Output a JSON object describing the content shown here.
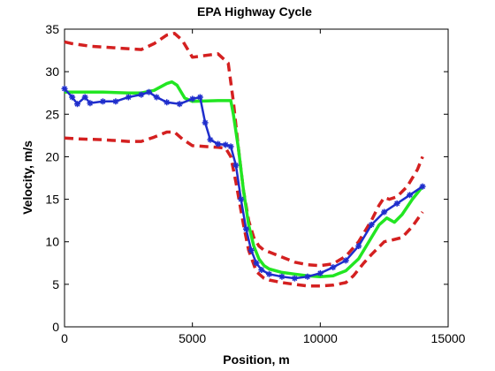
{
  "chart_data": {
    "type": "line",
    "title": "EPA Highway Cycle",
    "xlabel": "Position, m",
    "ylabel": "Velocity, m/s",
    "xlim": [
      0,
      15000
    ],
    "ylim": [
      0,
      35
    ],
    "xticks": [
      0,
      5000,
      10000,
      15000
    ],
    "yticks": [
      0,
      5,
      10,
      15,
      20,
      25,
      30,
      35
    ],
    "grid": false,
    "legend": "none",
    "series": [
      {
        "style": "dashed",
        "color": "#d42020",
        "x": [
          0,
          300,
          1000,
          2000,
          3000,
          3500,
          4000,
          4300,
          4600,
          5000,
          6000,
          6400,
          6600,
          6800,
          7000,
          7200,
          7400,
          7600,
          7800,
          8000,
          8500,
          9000,
          9500,
          10000,
          10500,
          11000,
          11500,
          12000,
          12300,
          12500,
          12700,
          13000,
          13400,
          13800,
          14000
        ],
        "y": [
          33.5,
          33.3,
          33.0,
          32.8,
          32.6,
          33.3,
          34.3,
          34.5,
          33.7,
          31.7,
          32.1,
          31.0,
          26.5,
          21.0,
          16.0,
          12.5,
          10.5,
          9.5,
          9.0,
          8.8,
          8.2,
          7.6,
          7.3,
          7.2,
          7.4,
          8.3,
          10.0,
          12.5,
          14.3,
          15.2,
          15.0,
          15.3,
          16.5,
          18.5,
          20.0
        ]
      },
      {
        "style": "dashed",
        "color": "#d42020",
        "x": [
          0,
          500,
          1500,
          2500,
          3000,
          3500,
          4000,
          4300,
          4600,
          5000,
          6000,
          6300,
          6500,
          6700,
          7000,
          7200,
          7500,
          7800,
          8000,
          8500,
          9000,
          9500,
          10000,
          10500,
          11000,
          11300,
          11700,
          12000,
          12300,
          12500,
          12800,
          13200,
          13600,
          14000
        ],
        "y": [
          22.2,
          22.1,
          22.0,
          21.8,
          21.8,
          22.3,
          22.9,
          22.9,
          22.1,
          21.3,
          21.1,
          21.0,
          20.0,
          17.0,
          12.0,
          9.0,
          6.5,
          5.7,
          5.5,
          5.2,
          5.0,
          4.8,
          4.8,
          4.9,
          5.2,
          6.0,
          7.5,
          8.5,
          9.4,
          10.0,
          10.2,
          10.5,
          11.8,
          13.5
        ]
      },
      {
        "style": "solid",
        "color": "#22e622",
        "x": [
          0,
          500,
          1500,
          2500,
          3000,
          3500,
          4000,
          4200,
          4400,
          4700,
          5000,
          6000,
          6500,
          6600,
          6800,
          7000,
          7200,
          7400,
          7600,
          7800,
          8000,
          8500,
          9000,
          9500,
          10000,
          10500,
          11000,
          11500,
          12000,
          12300,
          12600,
          12900,
          13200,
          13600,
          14000
        ],
        "y": [
          27.6,
          27.6,
          27.6,
          27.5,
          27.5,
          27.8,
          28.6,
          28.8,
          28.4,
          26.9,
          26.5,
          26.6,
          26.6,
          25.0,
          21.0,
          16.0,
          12.0,
          9.5,
          8.0,
          7.2,
          6.8,
          6.4,
          6.2,
          6.0,
          5.9,
          6.0,
          6.6,
          8.0,
          10.5,
          12.0,
          12.8,
          12.3,
          13.2,
          15.0,
          16.5
        ]
      },
      {
        "style": "markers",
        "marker": "*",
        "color": "#1f2ecc",
        "x": [
          0,
          300,
          500,
          800,
          1000,
          1500,
          2000,
          2500,
          3000,
          3300,
          3600,
          4000,
          4500,
          5000,
          5300,
          5500,
          5700,
          6000,
          6300,
          6500,
          6700,
          6900,
          7100,
          7300,
          7500,
          7700,
          8000,
          8500,
          9000,
          9500,
          10000,
          10500,
          11000,
          11500,
          12000,
          12500,
          13000,
          13500,
          14000
        ],
        "y": [
          28.0,
          27.0,
          26.2,
          27.0,
          26.3,
          26.5,
          26.5,
          27.0,
          27.3,
          27.6,
          27.0,
          26.4,
          26.2,
          26.8,
          27.0,
          24.0,
          22.0,
          21.5,
          21.4,
          21.2,
          19.0,
          15.0,
          11.5,
          9.0,
          7.5,
          6.7,
          6.2,
          5.9,
          5.7,
          5.9,
          6.3,
          7.0,
          7.8,
          9.5,
          12.0,
          13.5,
          14.5,
          15.5,
          16.5
        ]
      }
    ]
  }
}
